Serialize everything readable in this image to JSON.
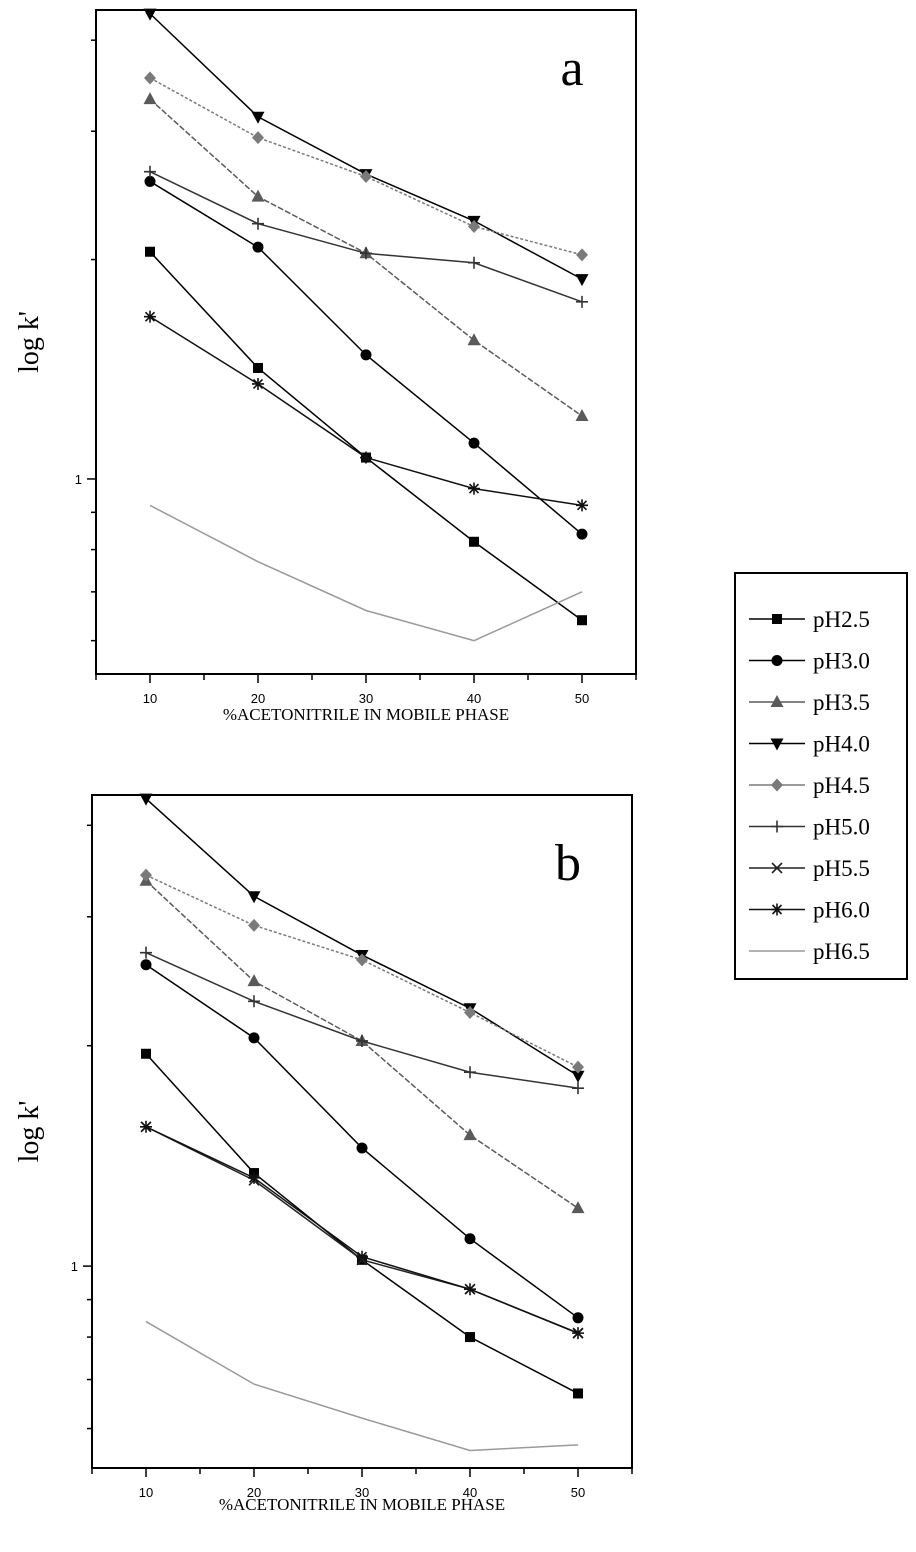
{
  "chart_data": [
    {
      "type": "line",
      "panel_label": "a",
      "xlabel": "%ACETONITRILE IN MOBILE PHASE",
      "ylabel": "log k'",
      "yscale": "log",
      "ytick_labels": [
        "1"
      ],
      "x": [
        10,
        20,
        30,
        40,
        50
      ],
      "xtick_labels": [
        "10",
        "20",
        "30",
        "40",
        "50"
      ],
      "xlim": [
        5,
        55
      ],
      "ylim": [
        0.54,
        4.4
      ],
      "legend_position": "right",
      "series": [
        {
          "name": "pH2.5",
          "marker": "square",
          "color": "#000000",
          "values": [
            2.05,
            1.42,
            1.07,
            0.82,
            0.64
          ]
        },
        {
          "name": "pH3.0",
          "marker": "circle",
          "color": "#000000",
          "values": [
            2.56,
            2.08,
            1.48,
            1.12,
            0.84
          ]
        },
        {
          "name": "pH3.5",
          "marker": "triangle-up",
          "color": "#5a5a5a",
          "values": [
            3.32,
            2.44,
            2.04,
            1.55,
            1.22
          ]
        },
        {
          "name": "pH4.0",
          "marker": "triangle-down",
          "color": "#000000",
          "values": [
            4.35,
            3.14,
            2.62,
            2.26,
            1.88
          ]
        },
        {
          "name": "pH4.5",
          "marker": "diamond",
          "color": "#7a7a7a",
          "values": [
            3.55,
            2.94,
            2.6,
            2.22,
            2.03
          ]
        },
        {
          "name": "pH5.0",
          "marker": "plus",
          "color": "#333333",
          "values": [
            2.64,
            2.24,
            2.04,
            1.98,
            1.75
          ]
        },
        {
          "name": "pH5.5",
          "marker": "x",
          "color": "#222222",
          "values": [
            null,
            null,
            null,
            null,
            null
          ]
        },
        {
          "name": "pH6.0",
          "marker": "asterisk",
          "color": "#111111",
          "values": [
            1.67,
            1.35,
            1.07,
            0.97,
            0.92
          ]
        },
        {
          "name": "pH6.5",
          "marker": "none",
          "color": "#9a9a9a",
          "values": [
            0.92,
            0.77,
            0.66,
            0.6,
            0.7
          ]
        }
      ]
    },
    {
      "type": "line",
      "panel_label": "b",
      "xlabel": "%ACETONITRILE IN MOBILE PHASE",
      "ylabel": "log k'",
      "yscale": "log",
      "ytick_labels": [
        "1"
      ],
      "x": [
        10,
        20,
        30,
        40,
        50
      ],
      "xtick_labels": [
        "10",
        "20",
        "30",
        "40",
        "50"
      ],
      "xlim": [
        5,
        55
      ],
      "ylim": [
        0.53,
        4.4
      ],
      "series": [
        {
          "name": "pH2.5",
          "marker": "square",
          "color": "#000000",
          "values": [
            1.95,
            1.34,
            1.02,
            0.8,
            0.67
          ]
        },
        {
          "name": "pH3.0",
          "marker": "circle",
          "color": "#000000",
          "values": [
            2.58,
            2.05,
            1.45,
            1.09,
            0.85
          ]
        },
        {
          "name": "pH3.5",
          "marker": "triangle-up",
          "color": "#5a5a5a",
          "values": [
            3.36,
            2.45,
            2.03,
            1.51,
            1.2
          ]
        },
        {
          "name": "pH4.0",
          "marker": "triangle-down",
          "color": "#000000",
          "values": [
            4.35,
            3.2,
            2.66,
            2.25,
            1.82
          ]
        },
        {
          "name": "pH4.5",
          "marker": "diamond",
          "color": "#7a7a7a",
          "values": [
            3.42,
            2.92,
            2.62,
            2.22,
            1.87
          ]
        },
        {
          "name": "pH5.0",
          "marker": "plus",
          "color": "#333333",
          "values": [
            2.68,
            2.3,
            2.03,
            1.84,
            1.75
          ]
        },
        {
          "name": "pH5.5",
          "marker": "x",
          "color": "#222222",
          "values": [
            1.55,
            1.31,
            1.02,
            0.93,
            0.81
          ]
        },
        {
          "name": "pH6.0",
          "marker": "asterisk",
          "color": "#111111",
          "values": [
            1.55,
            1.32,
            1.03,
            0.93,
            0.81
          ]
        },
        {
          "name": "pH6.5",
          "marker": "none",
          "color": "#9a9a9a",
          "values": [
            0.84,
            0.69,
            0.62,
            0.56,
            0.57
          ]
        }
      ]
    }
  ]
}
